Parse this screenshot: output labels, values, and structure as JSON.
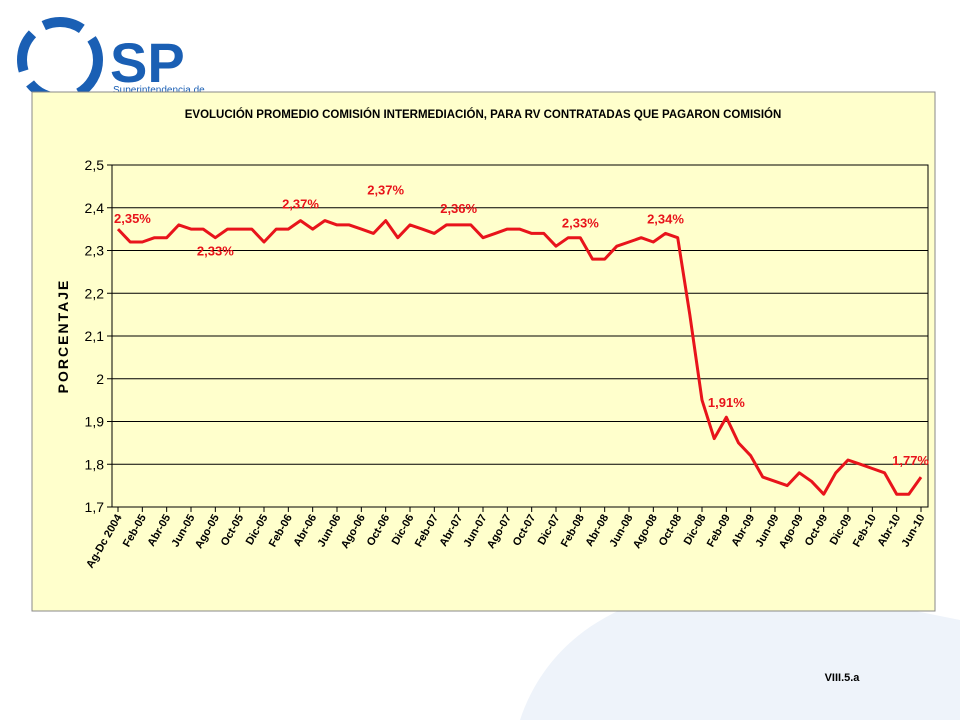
{
  "logo": {
    "text": "SP",
    "subtitle": "Superintendencia de"
  },
  "footer": "VIII.5.a",
  "chart_data": {
    "type": "line",
    "title": "EVOLUCIÓN PROMEDIO COMISIÓN INTERMEDIACIÓN, PARA RV CONTRATADAS QUE PAGARON COMISIÓN",
    "y_label": "PORCENTAJE",
    "color": "#e8141b",
    "categories": [
      "Ag-Dc 2004",
      null,
      "Feb-05",
      null,
      "Abr-05",
      null,
      "Jun-05",
      null,
      "Ago-05",
      null,
      "Oct-05",
      null,
      "Dic-05",
      null,
      "Feb-06",
      null,
      "Abr-06",
      null,
      "Jun-06",
      null,
      "Ago-06",
      null,
      "Oct-06",
      null,
      "Dic-06",
      null,
      "Feb-07",
      null,
      "Abr-07",
      null,
      "Jun-07",
      null,
      "Ago-07",
      null,
      "Oct-07",
      null,
      "Dic-07",
      null,
      "Feb-08",
      null,
      "Abr-08",
      null,
      "Jun-08",
      null,
      "Ago-08",
      null,
      "Oct-08",
      null,
      "Dic-08",
      null,
      "Feb-09",
      null,
      "Abr-09",
      null,
      "Jun-09",
      null,
      "Ago-09",
      null,
      "Oct-09",
      null,
      "Dic-09",
      null,
      "Feb-10",
      null,
      "Abr-10",
      null,
      "Jun-10"
    ],
    "values": [
      2.35,
      2.32,
      2.32,
      2.33,
      2.33,
      2.36,
      2.35,
      2.35,
      2.33,
      2.35,
      2.35,
      2.35,
      2.32,
      2.35,
      2.35,
      2.37,
      2.35,
      2.37,
      2.36,
      2.36,
      2.35,
      2.34,
      2.37,
      2.33,
      2.36,
      2.35,
      2.34,
      2.36,
      2.36,
      2.36,
      2.33,
      2.34,
      2.35,
      2.35,
      2.34,
      2.34,
      2.31,
      2.33,
      2.33,
      2.28,
      2.28,
      2.31,
      2.32,
      2.33,
      2.32,
      2.34,
      2.33,
      2.15,
      1.95,
      1.86,
      1.91,
      1.85,
      1.82,
      1.77,
      1.76,
      1.75,
      1.78,
      1.76,
      1.73,
      1.78,
      1.81,
      1.8,
      1.79,
      1.78,
      1.73,
      1.73,
      1.77
    ],
    "value_labels": [
      "2,35%",
      null,
      null,
      null,
      null,
      null,
      null,
      null,
      "2,33%",
      null,
      null,
      null,
      null,
      null,
      null,
      "2,37%",
      null,
      null,
      null,
      null,
      null,
      null,
      "2,37%",
      null,
      null,
      null,
      null,
      null,
      "2,36%",
      null,
      null,
      null,
      null,
      null,
      null,
      null,
      null,
      null,
      "2,33%",
      null,
      null,
      null,
      null,
      null,
      null,
      "2,34%",
      null,
      null,
      null,
      null,
      "1,91%",
      null,
      null,
      null,
      null,
      null,
      null,
      null,
      null,
      null,
      null,
      null,
      null,
      null,
      null,
      null,
      "1,77%"
    ],
    "ylim": [
      1.7,
      2.5
    ],
    "yticks": [
      {
        "value": 1.7,
        "label": "1,7"
      },
      {
        "value": 1.8,
        "label": "1,8"
      },
      {
        "value": 1.9,
        "label": "1,9"
      },
      2,
      {
        "value": 2.1,
        "label": "2,1"
      },
      {
        "value": 2.2,
        "label": "2,2"
      },
      {
        "value": 2.3,
        "label": "2,3"
      },
      {
        "value": 2.4,
        "label": "2,4"
      },
      {
        "value": 2.5,
        "label": "2,5"
      }
    ],
    "grid": true
  }
}
